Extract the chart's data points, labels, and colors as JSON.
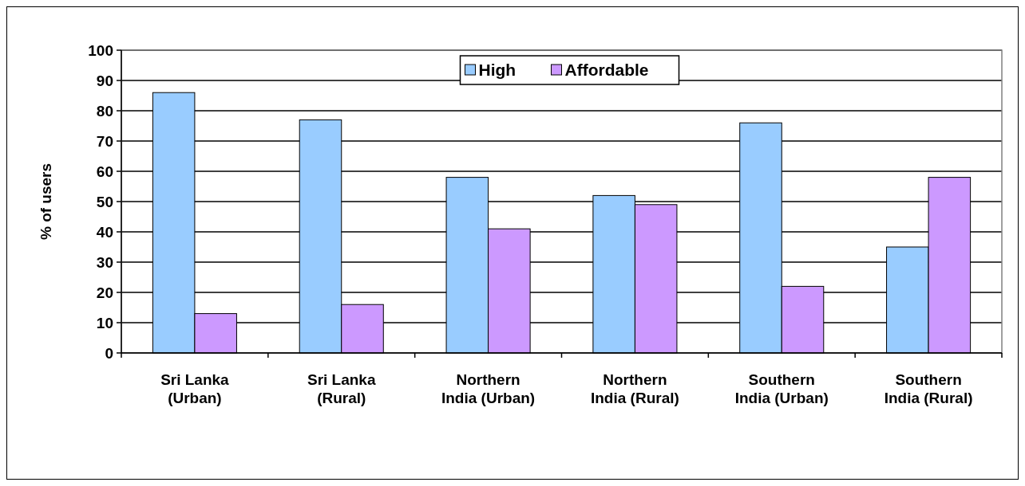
{
  "chart_data": {
    "type": "bar",
    "ylabel": "% of users",
    "categories": [
      "Sri Lanka (Urban)",
      "Sri Lanka (Rural)",
      "Northern India (Urban)",
      "Northern India (Rural)",
      "Southern India (Urban)",
      "Southern India (Rural)"
    ],
    "series": [
      {
        "name": "High",
        "color": "#99ccff",
        "values": [
          86,
          77,
          58,
          52,
          76,
          35
        ]
      },
      {
        "name": "Affordable",
        "color": "#cc99ff",
        "values": [
          13,
          16,
          41,
          49,
          22,
          58
        ]
      }
    ],
    "ylim": [
      0,
      100
    ],
    "yticks": [
      0,
      10,
      20,
      30,
      40,
      50,
      60,
      70,
      80,
      90,
      100
    ],
    "grid": "y",
    "legend": "top"
  }
}
